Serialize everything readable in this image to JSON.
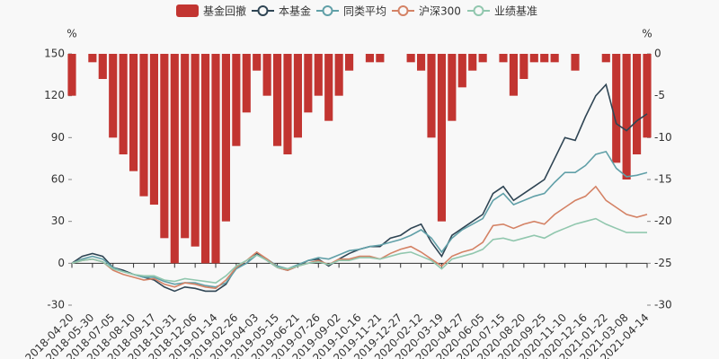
{
  "chart_data": {
    "type": "bar-line",
    "ylabel": "%",
    "y2label": "%",
    "categories": [
      "2018-04-20",
      null,
      "2018-05-30",
      null,
      "2018-07-05",
      null,
      "2018-08-10",
      null,
      "2018-09-17",
      null,
      "2018-10-31",
      null,
      "2018-12-06",
      null,
      "2019-01-14",
      null,
      "2019-02-26",
      null,
      "2019-04-03",
      null,
      "2019-05-15",
      null,
      "2019-06-21",
      null,
      "2019-07-26",
      null,
      "2019-09-02",
      null,
      "2019-10-16",
      null,
      "2019-11-21",
      null,
      "2019-12-27",
      null,
      "2020-02-12",
      null,
      "2020-03-19",
      null,
      "2020-04-27",
      null,
      "2020-06-05",
      null,
      "2020-07-15",
      null,
      "2020-08-20",
      null,
      "2020-09-25",
      null,
      "2020-11-10",
      null,
      "2020-12-16",
      null,
      "2021-01-22",
      null,
      "2021-03-08",
      null,
      "2021-04-14"
    ],
    "ylim": [
      -30,
      150
    ],
    "yticks": [
      -30,
      0,
      30,
      60,
      90,
      120,
      150
    ],
    "y2lim": [
      -30,
      0
    ],
    "y2ticks": [
      -30,
      -25,
      -20,
      -15,
      -10,
      -5,
      0
    ],
    "series": [
      {
        "name": "基金回撤",
        "type": "bar",
        "axis": "y2",
        "color": "#c23531",
        "values": [
          -5,
          0,
          -1,
          -3,
          -10,
          -12,
          -14,
          -17,
          -18,
          -22,
          -25,
          -22,
          -23,
          -25,
          -25,
          -20,
          -11,
          -7,
          -2,
          -5,
          -11,
          -12,
          -10,
          -7,
          -5,
          -8,
          -5,
          -2,
          0,
          -1,
          -1,
          0,
          0,
          -1,
          -2,
          -10,
          -20,
          -8,
          -4,
          -2,
          -1,
          0,
          -1,
          -5,
          -3,
          -1,
          -1,
          -1,
          0,
          -2,
          0,
          0,
          -1,
          -13,
          -15,
          -12,
          -10
        ]
      },
      {
        "name": "本基金",
        "type": "line",
        "color": "#2f4554",
        "values": [
          0,
          5,
          7,
          5,
          -3,
          -5,
          -8,
          -10,
          -12,
          -17,
          -20,
          -17,
          -18,
          -20,
          -20,
          -15,
          -3,
          0,
          7,
          2,
          -3,
          -5,
          -2,
          2,
          3,
          -2,
          3,
          7,
          10,
          12,
          12,
          18,
          20,
          25,
          28,
          15,
          5,
          20,
          25,
          30,
          35,
          50,
          55,
          45,
          50,
          55,
          60,
          75,
          90,
          88,
          105,
          120,
          128,
          100,
          95,
          102,
          107
        ]
      },
      {
        "name": "同类平均",
        "type": "line",
        "color": "#61a0a8",
        "values": [
          0,
          3,
          5,
          3,
          -3,
          -6,
          -8,
          -10,
          -10,
          -13,
          -15,
          -14,
          -14,
          -16,
          -17,
          -14,
          -4,
          0,
          6,
          3,
          -2,
          -4,
          -1,
          2,
          4,
          3,
          6,
          9,
          10,
          12,
          13,
          15,
          17,
          20,
          24,
          18,
          8,
          18,
          24,
          28,
          32,
          45,
          50,
          42,
          45,
          48,
          50,
          58,
          65,
          65,
          70,
          78,
          80,
          68,
          62,
          63,
          65
        ]
      },
      {
        "name": "沪深300",
        "type": "line",
        "color": "#d48265",
        "values": [
          0,
          2,
          3,
          1,
          -5,
          -8,
          -10,
          -12,
          -11,
          -15,
          -17,
          -14,
          -15,
          -17,
          -18,
          -12,
          -3,
          2,
          8,
          3,
          -3,
          -5,
          -2,
          0,
          2,
          -1,
          3,
          3,
          5,
          5,
          3,
          7,
          10,
          12,
          8,
          3,
          -2,
          5,
          8,
          10,
          15,
          27,
          28,
          25,
          28,
          30,
          28,
          35,
          40,
          45,
          48,
          55,
          45,
          40,
          35,
          33,
          35
        ]
      },
      {
        "name": "业绩基准",
        "type": "line",
        "color": "#91c7ae",
        "values": [
          0,
          2,
          3,
          1,
          -4,
          -6,
          -8,
          -9,
          -9,
          -12,
          -13,
          -11,
          -12,
          -13,
          -14,
          -9,
          -2,
          2,
          6,
          2,
          -3,
          -4,
          -2,
          0,
          1,
          -1,
          2,
          2,
          4,
          4,
          3,
          5,
          7,
          8,
          5,
          2,
          -4,
          3,
          5,
          7,
          10,
          17,
          18,
          16,
          18,
          20,
          18,
          22,
          25,
          28,
          30,
          32,
          28,
          25,
          22,
          22,
          22
        ]
      }
    ]
  }
}
